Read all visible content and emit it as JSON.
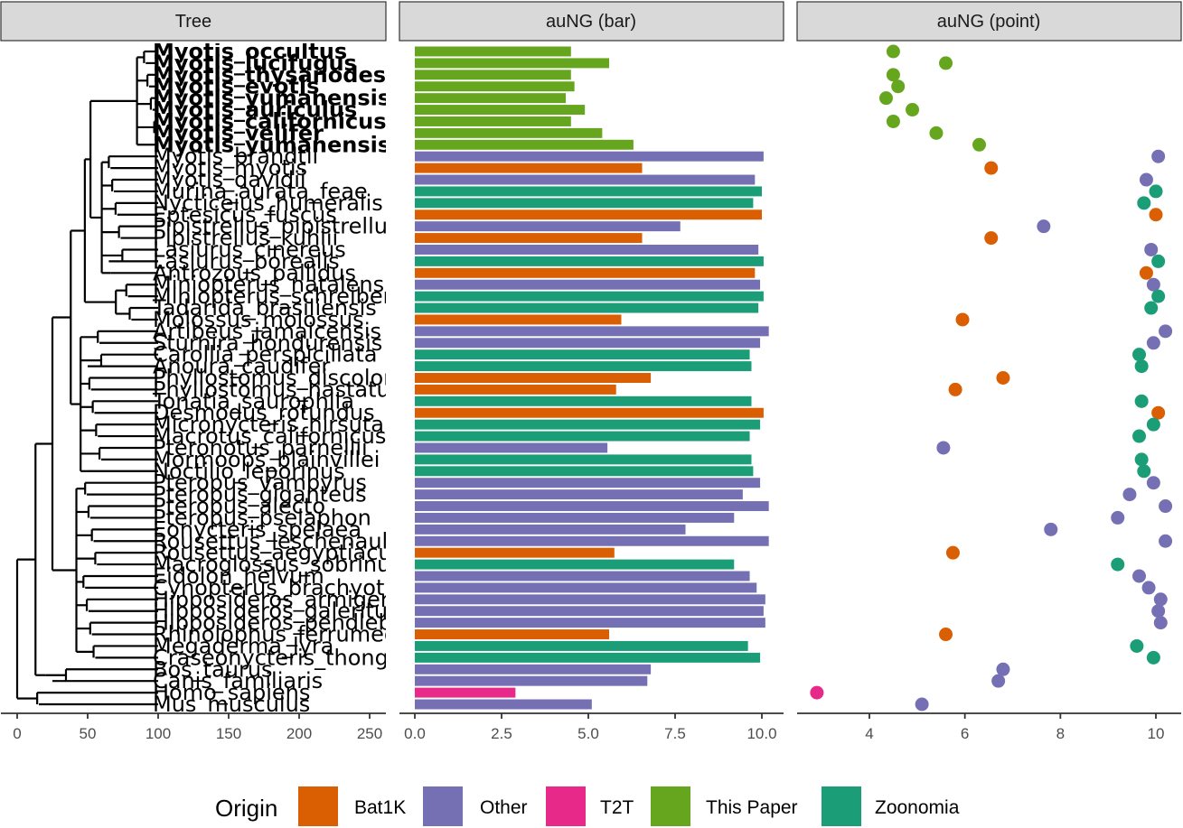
{
  "colors": {
    "Bat1K": "#D95F02",
    "Other": "#7570B3",
    "T2T": "#E7298A",
    "This Paper": "#66A61E",
    "Zoonomia": "#1B9E77",
    "strip_fill": "#d9d9d9",
    "strip_border": "#333333",
    "axis": "#333333"
  },
  "chart_data": [
    {
      "type": "tree",
      "panel": "Tree",
      "xlim": [
        0,
        250
      ],
      "xticks": [
        "0",
        "50",
        "100",
        "150",
        "200",
        "250"
      ],
      "xtick_values": [
        0,
        50,
        100,
        150,
        200,
        250
      ],
      "note": "tip labels in order top to bottom; branch tips at x≈100",
      "tip_labels": [
        "Myotis_occultus",
        "Myotis_lucifugus",
        "Myotis_thysanodes",
        "Myotis_evotis",
        "Myotis_yumanensis_x",
        "Myotis_auriculus",
        "Myotis_californicus",
        "Myotis_velifer",
        "Myotis_yumanensis",
        "Myotis_brandtii",
        "Myotis_myotis",
        "Myotis_davidii",
        "Murina_aurata_feae",
        "Nycticeius_humeralis",
        "Eptesicus_fuscus",
        "Pipistrellus_pipistrellus",
        "Pipistrellus_kuhlii",
        "Lasiurus_cinereus",
        "Lasiurus_borealis",
        "Antrozous_pallidus",
        "Miniopterus_natalensis",
        "Miniopterus_schreibersii",
        "Tadarida_brasiliensis",
        "Molossus_molossus",
        "Artibeus_jamaicensis",
        "Sturnira_hondurensis",
        "Carollia_perspicillata",
        "Anoura_caudifer",
        "Phyllostomus_discolor",
        "Phyllostomus_hastatus",
        "Tonatia_saurophila",
        "Desmodus_rotundus",
        "Micronycteris_hirsuta",
        "Macrotus_californicus",
        "Pteronotus_parnellii",
        "Mormoops_blainvillei",
        "Noctilio_leporinus",
        "Pteropus_vampyrus",
        "Pteropus_giganteus",
        "Pteropus_alecto",
        "Pteropus_pselaphon",
        "Eonycteris_spelaea",
        "Rousettus_leschenaultii",
        "Rousettus_aegyptiacus",
        "Macroglossus_sobrinus",
        "Eidolon_helvum",
        "Cynopterus_brachyotis",
        "Hipposideros_armiger",
        "Hipposideros_galeritus",
        "Hipposideros_pendleburyi",
        "Rhinolophus_ferrumequinum",
        "Megaderma_lyra",
        "Craseonycteris_thonglongyai",
        "Bos_taurus",
        "Canis_familiaris",
        "Homo_sapiens",
        "Mus_musculus"
      ],
      "bold_tips": [
        "Myotis_occultus",
        "Myotis_lucifugus",
        "Myotis_thysanodes",
        "Myotis_evotis",
        "Myotis_yumanensis_x",
        "Myotis_auriculus",
        "Myotis_californicus",
        "Myotis_velifer",
        "Myotis_yumanensis"
      ]
    },
    {
      "type": "bar",
      "panel": "auNG (bar)",
      "orientation": "horizontal",
      "xlim": [
        0,
        10.5
      ],
      "xticks": [
        "0.0",
        "2.5",
        "5.0",
        "7.5",
        "10.0"
      ],
      "xtick_values": [
        0,
        2.5,
        5,
        7.5,
        10
      ],
      "values": [
        4.5,
        5.6,
        4.5,
        4.6,
        4.35,
        4.9,
        4.5,
        5.4,
        6.3,
        10.05,
        6.55,
        9.8,
        10.0,
        9.75,
        10.0,
        7.65,
        6.55,
        9.9,
        10.05,
        9.8,
        9.95,
        10.05,
        9.9,
        5.95,
        10.2,
        9.95,
        9.65,
        9.7,
        6.8,
        5.8,
        9.7,
        10.05,
        9.95,
        9.65,
        5.55,
        9.7,
        9.75,
        9.95,
        9.45,
        10.2,
        9.2,
        7.8,
        10.2,
        5.75,
        9.2,
        9.65,
        9.85,
        10.1,
        10.05,
        10.1,
        5.6,
        9.6,
        9.95,
        6.8,
        6.7,
        2.9,
        5.1
      ],
      "origins": [
        "This Paper",
        "This Paper",
        "This Paper",
        "This Paper",
        "This Paper",
        "This Paper",
        "This Paper",
        "This Paper",
        "This Paper",
        "Other",
        "Bat1K",
        "Other",
        "Zoonomia",
        "Zoonomia",
        "Bat1K",
        "Other",
        "Bat1K",
        "Other",
        "Zoonomia",
        "Bat1K",
        "Other",
        "Zoonomia",
        "Zoonomia",
        "Bat1K",
        "Other",
        "Other",
        "Zoonomia",
        "Zoonomia",
        "Bat1K",
        "Bat1K",
        "Zoonomia",
        "Bat1K",
        "Zoonomia",
        "Zoonomia",
        "Other",
        "Zoonomia",
        "Zoonomia",
        "Other",
        "Other",
        "Other",
        "Other",
        "Other",
        "Other",
        "Bat1K",
        "Zoonomia",
        "Other",
        "Other",
        "Other",
        "Other",
        "Other",
        "Bat1K",
        "Zoonomia",
        "Zoonomia",
        "Other",
        "Other",
        "T2T",
        "Other"
      ]
    },
    {
      "type": "scatter",
      "panel": "auNG (point)",
      "xlim": [
        2.8,
        10.3
      ],
      "xticks": [
        "4",
        "6",
        "8",
        "10"
      ],
      "xtick_values": [
        4,
        6,
        8,
        10
      ],
      "note": "same values and origins as the bar panel, one point per tip"
    }
  ],
  "legend": {
    "title": "Origin",
    "entries": [
      "Bat1K",
      "Other",
      "T2T",
      "This Paper",
      "Zoonomia"
    ]
  },
  "tree_tips_label": "Tree",
  "bar_label": "auNG (bar)",
  "point_label": "auNG (point)"
}
